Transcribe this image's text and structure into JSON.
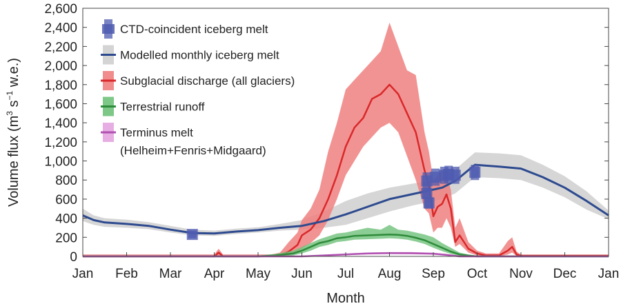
{
  "chart_data": {
    "type": "line",
    "xlabel": "Month",
    "ylabel": "Volume flux",
    "ylabel_unit_parts": [
      "(m",
      "3",
      " s",
      "−1",
      " w.e.)"
    ],
    "x_ticks": [
      "Jan",
      "Feb",
      "Mar",
      "Apr",
      "May",
      "Jun",
      "Jul",
      "Aug",
      "Sep",
      "Oct",
      "Nov",
      "Dec",
      "Jan"
    ],
    "y_ticks": [
      "0",
      "200",
      "400",
      "600",
      "800",
      "1,000",
      "1,200",
      "1,400",
      "1,600",
      "1,800",
      "2,000",
      "2,200",
      "2,400",
      "2,600"
    ],
    "ylim": [
      0,
      2600
    ],
    "xlim": [
      0,
      12
    ],
    "grid": false,
    "legend_position": "top-left",
    "legend": [
      {
        "label": "CTD-coincident iceberg melt"
      },
      {
        "label": "Modelled monthly iceberg melt"
      },
      {
        "label": "Subglacial discharge (all glaciers)"
      },
      {
        "label": "Terrestrial runoff"
      },
      {
        "label": "Terminus melt"
      },
      {
        "label": "(Helheim+Fenris+Midgaard)"
      }
    ],
    "colors": {
      "ctd": "#4f5bb0",
      "model_line": "#2d4a8f",
      "model_band": "#cfcfcf",
      "subglacial_line": "#d9282a",
      "subglacial_band": "#f08080",
      "runoff_line": "#2e8b3a",
      "runoff_band": "#6fc17a",
      "terminus_line": "#b04fb0",
      "terminus_band": "#e3a5e0"
    },
    "series": [
      {
        "name": "Modelled monthly iceberg melt",
        "x": [
          0,
          0.25,
          0.5,
          1,
          1.5,
          2,
          2.5,
          3,
          3.5,
          4,
          4.5,
          5,
          5.5,
          6,
          6.5,
          7,
          7.5,
          8,
          8.2,
          8.5,
          8.95,
          9.5,
          10,
          10.5,
          11,
          11.5,
          12
        ],
        "y": [
          430,
          380,
          355,
          340,
          320,
          280,
          245,
          240,
          260,
          275,
          300,
          320,
          370,
          440,
          520,
          600,
          650,
          700,
          720,
          790,
          960,
          940,
          920,
          830,
          720,
          580,
          430
        ],
        "lower": [
          370,
          330,
          310,
          300,
          285,
          250,
          220,
          215,
          235,
          250,
          270,
          280,
          300,
          330,
          400,
          470,
          530,
          580,
          600,
          660,
          830,
          820,
          800,
          720,
          620,
          490,
          390
        ],
        "upper": [
          500,
          430,
          400,
          385,
          360,
          320,
          280,
          270,
          290,
          305,
          340,
          380,
          470,
          580,
          660,
          720,
          760,
          800,
          820,
          910,
          1090,
          1080,
          1060,
          960,
          840,
          680,
          480
        ]
      },
      {
        "name": "CTD-coincident iceberg melt",
        "points": [
          {
            "x": 2.5,
            "y": 230,
            "lo": 190,
            "hi": 270
          },
          {
            "x": 7.85,
            "y": 790,
            "lo": 700,
            "hi": 880
          },
          {
            "x": 7.85,
            "y": 660,
            "lo": 600,
            "hi": 720
          },
          {
            "x": 7.9,
            "y": 560,
            "lo": 500,
            "hi": 620
          },
          {
            "x": 8.05,
            "y": 830,
            "lo": 740,
            "hi": 920
          },
          {
            "x": 8.25,
            "y": 850,
            "lo": 760,
            "hi": 940
          },
          {
            "x": 8.35,
            "y": 860,
            "lo": 770,
            "hi": 950
          },
          {
            "x": 8.5,
            "y": 850,
            "lo": 760,
            "hi": 940
          },
          {
            "x": 8.95,
            "y": 880,
            "lo": 800,
            "hi": 960
          }
        ]
      },
      {
        "name": "Subglacial discharge (all glaciers)",
        "x": [
          0,
          3.0,
          3.1,
          3.2,
          4.0,
          4.3,
          4.5,
          4.7,
          4.9,
          5.0,
          5.2,
          5.4,
          5.6,
          5.8,
          6.0,
          6.2,
          6.4,
          6.6,
          6.8,
          7.0,
          7.2,
          7.4,
          7.6,
          7.8,
          7.9,
          8.0,
          8.1,
          8.2,
          8.3,
          8.4,
          8.5,
          8.6,
          8.8,
          9.0,
          9.2,
          9.5,
          9.7,
          9.8,
          9.9,
          10.0,
          12
        ],
        "y": [
          0,
          0,
          40,
          0,
          0,
          5,
          10,
          50,
          120,
          220,
          280,
          400,
          600,
          850,
          1150,
          1350,
          1450,
          1650,
          1700,
          1800,
          1700,
          1500,
          1300,
          900,
          750,
          420,
          520,
          550,
          650,
          500,
          150,
          220,
          80,
          30,
          10,
          10,
          60,
          100,
          20,
          5,
          5
        ],
        "lower": [
          0,
          0,
          10,
          0,
          0,
          0,
          0,
          10,
          40,
          80,
          140,
          220,
          380,
          600,
          850,
          1000,
          1150,
          1250,
          1350,
          1400,
          1300,
          1050,
          800,
          500,
          450,
          250,
          300,
          300,
          400,
          300,
          100,
          130,
          40,
          10,
          0,
          0,
          20,
          40,
          5,
          0,
          0
        ],
        "upper": [
          20,
          20,
          80,
          20,
          20,
          20,
          40,
          150,
          250,
          380,
          500,
          700,
          1100,
          1400,
          1750,
          1850,
          1950,
          2050,
          2150,
          2450,
          2200,
          1950,
          1900,
          1300,
          1100,
          800,
          850,
          900,
          850,
          700,
          300,
          400,
          150,
          60,
          30,
          30,
          160,
          200,
          50,
          20,
          20
        ]
      },
      {
        "name": "Terrestrial runoff",
        "x": [
          0,
          4.0,
          4.4,
          4.8,
          5.0,
          5.2,
          5.4,
          5.6,
          5.8,
          6.0,
          6.2,
          6.5,
          6.8,
          7.0,
          7.2,
          7.4,
          7.6,
          7.8,
          8.0,
          8.2,
          8.4,
          8.6,
          8.8,
          9.0,
          12
        ],
        "y": [
          0,
          0,
          10,
          30,
          60,
          100,
          140,
          160,
          190,
          200,
          215,
          220,
          225,
          230,
          225,
          215,
          195,
          170,
          130,
          90,
          50,
          20,
          8,
          0,
          0
        ],
        "lower": [
          0,
          0,
          0,
          10,
          30,
          60,
          100,
          120,
          150,
          160,
          175,
          180,
          185,
          190,
          185,
          175,
          155,
          130,
          90,
          55,
          25,
          5,
          0,
          0,
          0
        ],
        "upper": [
          8,
          8,
          25,
          60,
          100,
          140,
          180,
          210,
          240,
          250,
          270,
          300,
          280,
          330,
          280,
          270,
          250,
          230,
          200,
          140,
          90,
          40,
          20,
          8,
          8
        ]
      },
      {
        "name": "Terminus melt (Helheim+Fenris+Midgaard)",
        "x": [
          0,
          5.0,
          5.5,
          6.0,
          6.5,
          7.0,
          7.5,
          8.0,
          8.3,
          8.6,
          12
        ],
        "y": [
          0,
          0,
          10,
          20,
          30,
          35,
          33,
          28,
          15,
          0,
          0
        ],
        "lower": [
          0,
          0,
          5,
          12,
          20,
          25,
          22,
          18,
          8,
          0,
          0
        ],
        "upper": [
          3,
          3,
          18,
          30,
          40,
          45,
          45,
          38,
          25,
          3,
          3
        ]
      }
    ]
  }
}
